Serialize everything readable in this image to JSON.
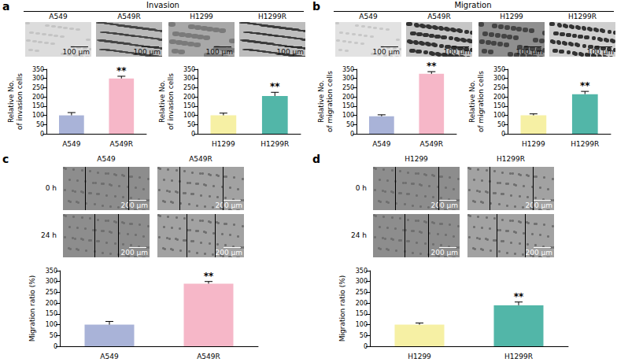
{
  "panels": [
    {
      "letter": "a",
      "title": "Invasion",
      "images": [
        {
          "label": "A549",
          "scale_bar": "100 μm"
        },
        {
          "label": "A549R",
          "scale_bar": "100 μm"
        },
        {
          "label": "H1299",
          "scale_bar": "100 μm"
        },
        {
          "label": "H1299R",
          "scale_bar": "100 μm"
        }
      ]
    },
    {
      "letter": "b",
      "title": "Migration",
      "images": [
        {
          "label": "A549",
          "scale_bar": "100 μm"
        },
        {
          "label": "A549R",
          "scale_bar": "100 μm"
        },
        {
          "label": "H1299",
          "scale_bar": "100 μm"
        },
        {
          "label": "H1299R",
          "scale_bar": "100 μm"
        }
      ]
    },
    {
      "letter": "c",
      "columns": [
        "A549",
        "A549R"
      ],
      "rows": [
        "0 h",
        "24 h"
      ],
      "scale_bar": "200 μm"
    },
    {
      "letter": "d",
      "columns": [
        "H1299",
        "H1299R"
      ],
      "rows": [
        "0 h",
        "24 h"
      ],
      "scale_bar": "200 μm"
    }
  ],
  "chart_data": [
    {
      "type": "bar",
      "ylabel": "Relative No.\nof invasion cells",
      "categories": [
        "A549",
        "A549R"
      ],
      "values": [
        100,
        300
      ],
      "errors": [
        15,
        12
      ],
      "colors": [
        "#a9b3d8",
        "#f6b7c8"
      ],
      "annotations": [
        null,
        "**"
      ],
      "ylim": [
        0,
        350
      ],
      "yticks": [
        0,
        50,
        100,
        150,
        200,
        250,
        300,
        350
      ],
      "grid": false
    },
    {
      "type": "bar",
      "ylabel": "Relative No.\nof invasion cells",
      "categories": [
        "H1299",
        "H1299R"
      ],
      "values": [
        100,
        205
      ],
      "errors": [
        12,
        20
      ],
      "colors": [
        "#f6f0a4",
        "#52b6a8"
      ],
      "annotations": [
        null,
        "**"
      ],
      "ylim": [
        0,
        350
      ],
      "yticks": [
        0,
        50,
        100,
        150,
        200,
        250,
        300,
        350
      ],
      "grid": false
    },
    {
      "type": "bar",
      "ylabel": "Relative No.\nof migration cells",
      "categories": [
        "A549",
        "A549R"
      ],
      "values": [
        95,
        325
      ],
      "errors": [
        8,
        12
      ],
      "colors": [
        "#a9b3d8",
        "#f6b7c8"
      ],
      "annotations": [
        null,
        "**"
      ],
      "ylim": [
        0,
        350
      ],
      "yticks": [
        0,
        50,
        100,
        150,
        200,
        250,
        300,
        350
      ],
      "grid": false
    },
    {
      "type": "bar",
      "ylabel": "Relative No.\nof migration cells",
      "categories": [
        "H1299",
        "H1299R"
      ],
      "values": [
        100,
        215
      ],
      "errors": [
        8,
        15
      ],
      "colors": [
        "#f6f0a4",
        "#52b6a8"
      ],
      "annotations": [
        null,
        "**"
      ],
      "ylim": [
        0,
        350
      ],
      "yticks": [
        0,
        50,
        100,
        150,
        200,
        250,
        300,
        350
      ],
      "grid": false
    },
    {
      "type": "bar",
      "ylabel": "Migration ratio (%)",
      "categories": [
        "A549",
        "A549R"
      ],
      "values": [
        100,
        290
      ],
      "errors": [
        15,
        10
      ],
      "colors": [
        "#a9b3d8",
        "#f6b7c8"
      ],
      "annotations": [
        null,
        "**"
      ],
      "ylim": [
        0,
        350
      ],
      "yticks": [
        0,
        50,
        100,
        150,
        200,
        250,
        300,
        350
      ],
      "grid": false
    },
    {
      "type": "bar",
      "ylabel": "Migration ratio (%)",
      "categories": [
        "H1299",
        "H1299R"
      ],
      "values": [
        100,
        190
      ],
      "errors": [
        8,
        15
      ],
      "colors": [
        "#f6f0a4",
        "#52b6a8"
      ],
      "annotations": [
        null,
        "**"
      ],
      "ylim": [
        0,
        350
      ],
      "yticks": [
        0,
        50,
        100,
        150,
        200,
        250,
        300,
        350
      ],
      "grid": false
    }
  ]
}
